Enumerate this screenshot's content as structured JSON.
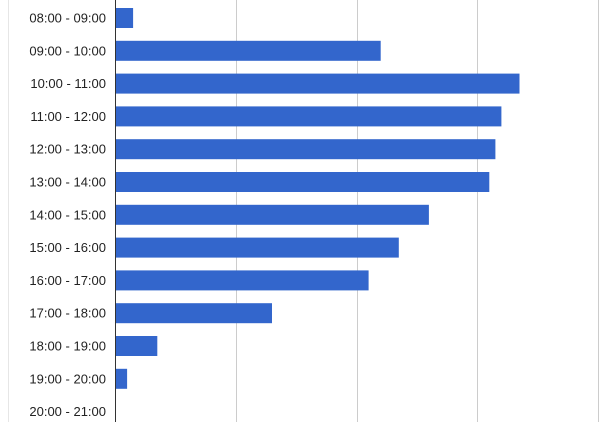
{
  "chart_data": {
    "type": "bar",
    "orientation": "horizontal",
    "categories": [
      "08:00 - 09:00",
      "09:00 - 10:00",
      "10:00 - 11:00",
      "11:00 - 12:00",
      "12:00 - 13:00",
      "13:00 - 14:00",
      "14:00 - 15:00",
      "15:00 - 16:00",
      "16:00 - 17:00",
      "17:00 - 18:00",
      "18:00 - 19:00",
      "19:00 - 20:00",
      "20:00 - 21:00"
    ],
    "values": [
      3,
      44,
      67,
      64,
      63,
      62,
      52,
      47,
      42,
      26,
      7,
      2,
      0
    ],
    "xlim": [
      0,
      80
    ],
    "gridlines_x": [
      0,
      20,
      40,
      60,
      80
    ],
    "grid": true,
    "bar_color": "#3366cc",
    "title": "",
    "xlabel": "",
    "ylabel": ""
  }
}
